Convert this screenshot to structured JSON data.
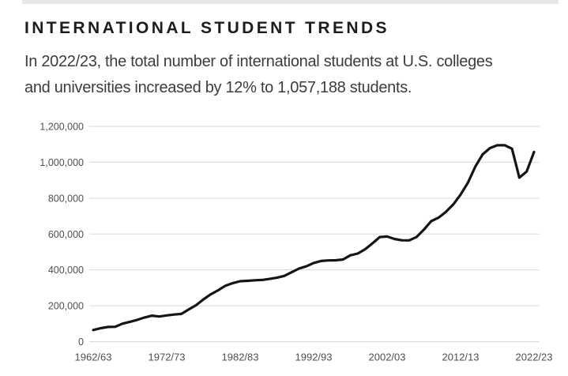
{
  "header": {
    "title": "INTERNATIONAL STUDENT TRENDS",
    "subtitle_line1": "In 2022/23, the total number of international students at U.S. colleges",
    "subtitle_line2": "and universities increased by 12% to 1,057,188 students."
  },
  "chart_data": {
    "type": "line",
    "title": "INTERNATIONAL STUDENT TRENDS",
    "xlabel": "",
    "ylabel": "",
    "ylim": [
      0,
      1200000
    ],
    "grid": "horizontal-only",
    "legend": "none",
    "years": [
      "1962/63",
      "1963/64",
      "1964/65",
      "1965/66",
      "1966/67",
      "1967/68",
      "1968/69",
      "1969/70",
      "1970/71",
      "1971/72",
      "1972/73",
      "1973/74",
      "1974/75",
      "1975/76",
      "1976/77",
      "1977/78",
      "1978/79",
      "1979/80",
      "1980/81",
      "1981/82",
      "1982/83",
      "1983/84",
      "1984/85",
      "1985/86",
      "1986/87",
      "1987/88",
      "1988/89",
      "1989/90",
      "1990/91",
      "1991/92",
      "1992/93",
      "1993/94",
      "1994/95",
      "1995/96",
      "1996/97",
      "1997/98",
      "1998/99",
      "1999/00",
      "2000/01",
      "2001/02",
      "2002/03",
      "2003/04",
      "2004/05",
      "2005/06",
      "2006/07",
      "2007/08",
      "2008/09",
      "2009/10",
      "2010/11",
      "2011/12",
      "2012/13",
      "2013/14",
      "2014/15",
      "2015/16",
      "2016/17",
      "2017/18",
      "2018/19",
      "2019/20",
      "2020/21",
      "2021/22",
      "2022/23"
    ],
    "values": [
      64705,
      74814,
      82045,
      82709,
      100262,
      110315,
      121362,
      134959,
      144708,
      140126,
      146097,
      151066,
      154580,
      179344,
      203068,
      235509,
      263938,
      286343,
      311882,
      326299,
      336990,
      338894,
      342113,
      343777,
      349609,
      356187,
      366354,
      386851,
      407529,
      419585,
      438618,
      449749,
      452635,
      453787,
      457984,
      481280,
      490933,
      514723,
      547867,
      582996,
      586323,
      572509,
      565039,
      564766,
      582984,
      623805,
      671616,
      690923,
      723277,
      764495,
      819644,
      886052,
      974926,
      1043839,
      1078822,
      1094792,
      1095299,
      1075496,
      914095,
      948519,
      1057188
    ],
    "x_tick_labels": [
      "1962/63",
      "1972/73",
      "1982/83",
      "1992/93",
      "2002/03",
      "2012/13",
      "2022/23"
    ],
    "y_tick_labels": [
      "0",
      "200,000",
      "400,000",
      "600,000",
      "800,000",
      "1,000,000",
      "1,200,000"
    ],
    "y_tick_values": [
      0,
      200000,
      400000,
      600000,
      800000,
      1000000,
      1200000
    ],
    "colors": {
      "line": "#151515",
      "grid": "#d9d9d9",
      "tick_text": "#4f4f4f",
      "title_text": "#1d1d1d",
      "subtitle_text": "#3c3c3c",
      "top_strip": "#e6e6e6"
    }
  }
}
